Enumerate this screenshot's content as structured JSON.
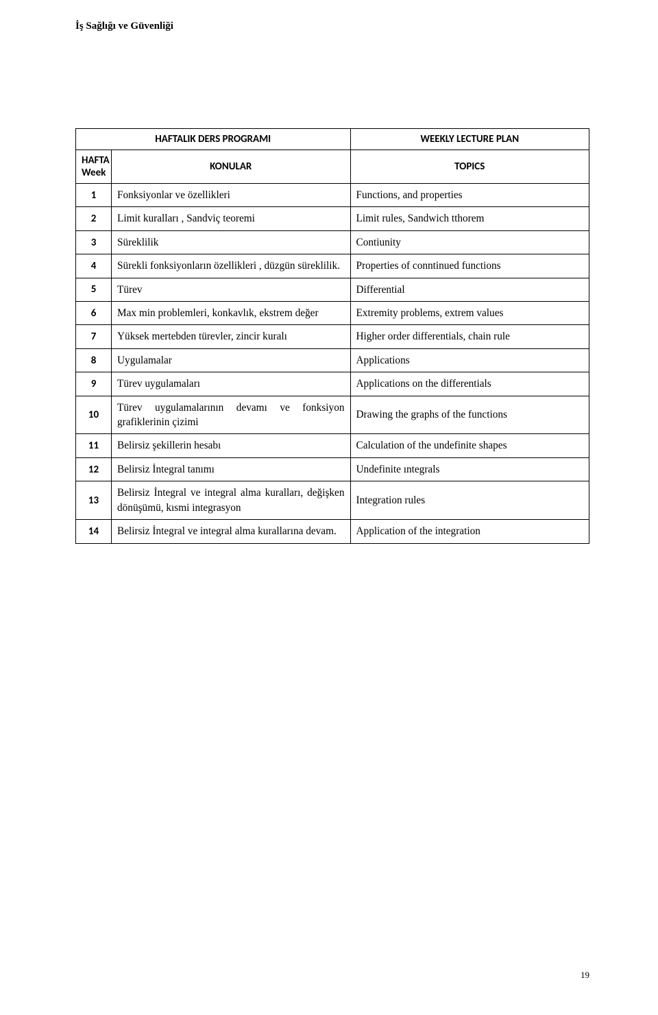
{
  "page_label": "İş Sağlığı ve Güvenliği",
  "page_number": "19",
  "table": {
    "header_left": "HAFTALIK DERS PROGRAMI",
    "header_right": "WEEKLY LECTURE PLAN",
    "sub_num_tr": "HAFTA",
    "sub_num_en": "Week",
    "sub_left": "KONULAR",
    "sub_right": "TOPICS",
    "rows": [
      {
        "n": "1",
        "l": "Fonksiyonlar ve özellikleri",
        "r": "Functions, and properties"
      },
      {
        "n": "2",
        "l": "Limit kuralları , Sandviç teoremi",
        "r": "Limit rules, Sandwich tthorem"
      },
      {
        "n": "3",
        "l": "Süreklilik",
        "r": "Contiunity"
      },
      {
        "n": "4",
        "l": "Sürekli fonksiyonların özellikleri , düzgün süreklilik.",
        "r": "Properties of conntinued functions"
      },
      {
        "n": "5",
        "l": "Türev",
        "r": "Differential"
      },
      {
        "n": "6",
        "l": "Max min problemleri, konkavlık, ekstrem değer",
        "r": "Extremity problems, extrem values"
      },
      {
        "n": "7",
        "l": "Yüksek mertebden türevler, zincir kuralı",
        "r": "Higher order differentials, chain rule"
      },
      {
        "n": "8",
        "l": "Uygulamalar",
        "r": "Applications"
      },
      {
        "n": "9",
        "l": "Türev uygulamaları",
        "r": "Applications on the differentials"
      },
      {
        "n": "10",
        "l": "Türev uygulamalarının devamı ve fonksiyon grafiklerinin çizimi",
        "r": "Drawing the graphs of the functions"
      },
      {
        "n": "11",
        "l": "Belirsiz şekillerin hesabı",
        "r": "Calculation of the undefinite shapes"
      },
      {
        "n": "12",
        "l": "Belirsiz İntegral tanımı",
        "r": "Undefinite ıntegrals"
      },
      {
        "n": "13",
        "l": "Belirsiz İntegral ve integral alma kuralları, değişken dönüşümü, kısmi integrasyon",
        "r": "Integration rules"
      },
      {
        "n": "14",
        "l": "Belirsiz İntegral ve integral alma kurallarına devam.",
        "r": "Application of the integration"
      }
    ]
  },
  "colors": {
    "text": "#000000",
    "bg": "#ffffff",
    "border": "#000000"
  }
}
